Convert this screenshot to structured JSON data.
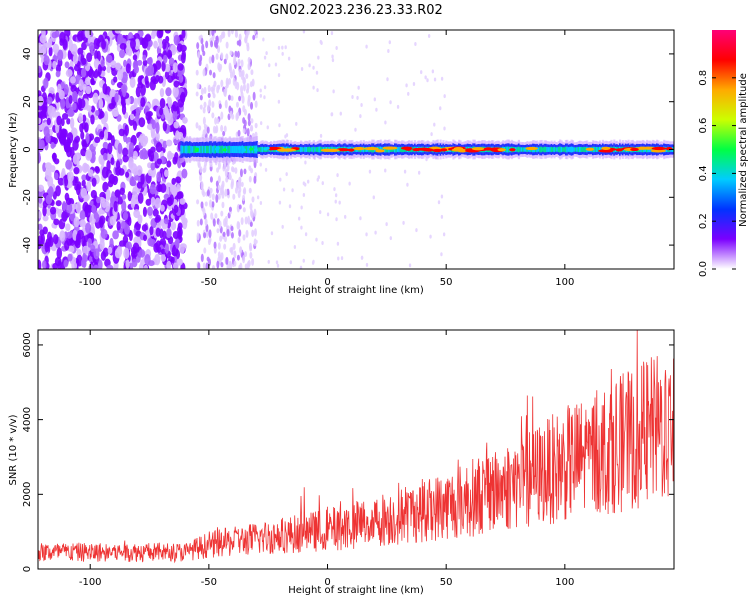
{
  "title": "GN02.2023.236.23.33.R02",
  "chart_data": [
    {
      "type": "heatmap",
      "xlabel": "Height of straight line (km)",
      "ylabel": "Frequency (Hz)",
      "xlim": [
        -122,
        146
      ],
      "ylim": [
        -50,
        50
      ],
      "xticks": [
        -100,
        -50,
        0,
        50,
        100
      ],
      "yticks": [
        -40,
        -20,
        0,
        20,
        40
      ],
      "colorbar": {
        "label": "Normalized spectral amplitude",
        "range": [
          0.0,
          1.0
        ],
        "ticks": [
          0.0,
          0.2,
          0.4,
          0.6,
          0.8
        ],
        "colors": [
          "#ffffff",
          "#7b00ff",
          "#0033ff",
          "#00ccff",
          "#00ff44",
          "#ccff00",
          "#ffaa00",
          "#ff0000",
          "#ff0077"
        ]
      },
      "features": {
        "noise_region_x": [
          -122,
          -60
        ],
        "noise_band_x": [
          -55,
          -30
        ],
        "signal_band_x": [
          -62,
          146
        ],
        "signal_center_hz": 0
      }
    },
    {
      "type": "line",
      "xlabel": "Height of straight line (km)",
      "ylabel": "SNR (10 * v/v)",
      "xlim": [
        -122,
        146
      ],
      "ylim": [
        0,
        6400
      ],
      "xticks": [
        -100,
        -50,
        0,
        50,
        100
      ],
      "yticks": [
        0,
        2000,
        4000,
        6000
      ],
      "color": "#ee3333",
      "trend": {
        "x": [
          -122,
          -60,
          -50,
          -25,
          0,
          25,
          50,
          75,
          100,
          125,
          146
        ],
        "y": [
          450,
          450,
          650,
          850,
          1050,
          1350,
          1700,
          2200,
          2800,
          3400,
          3900
        ]
      }
    }
  ]
}
